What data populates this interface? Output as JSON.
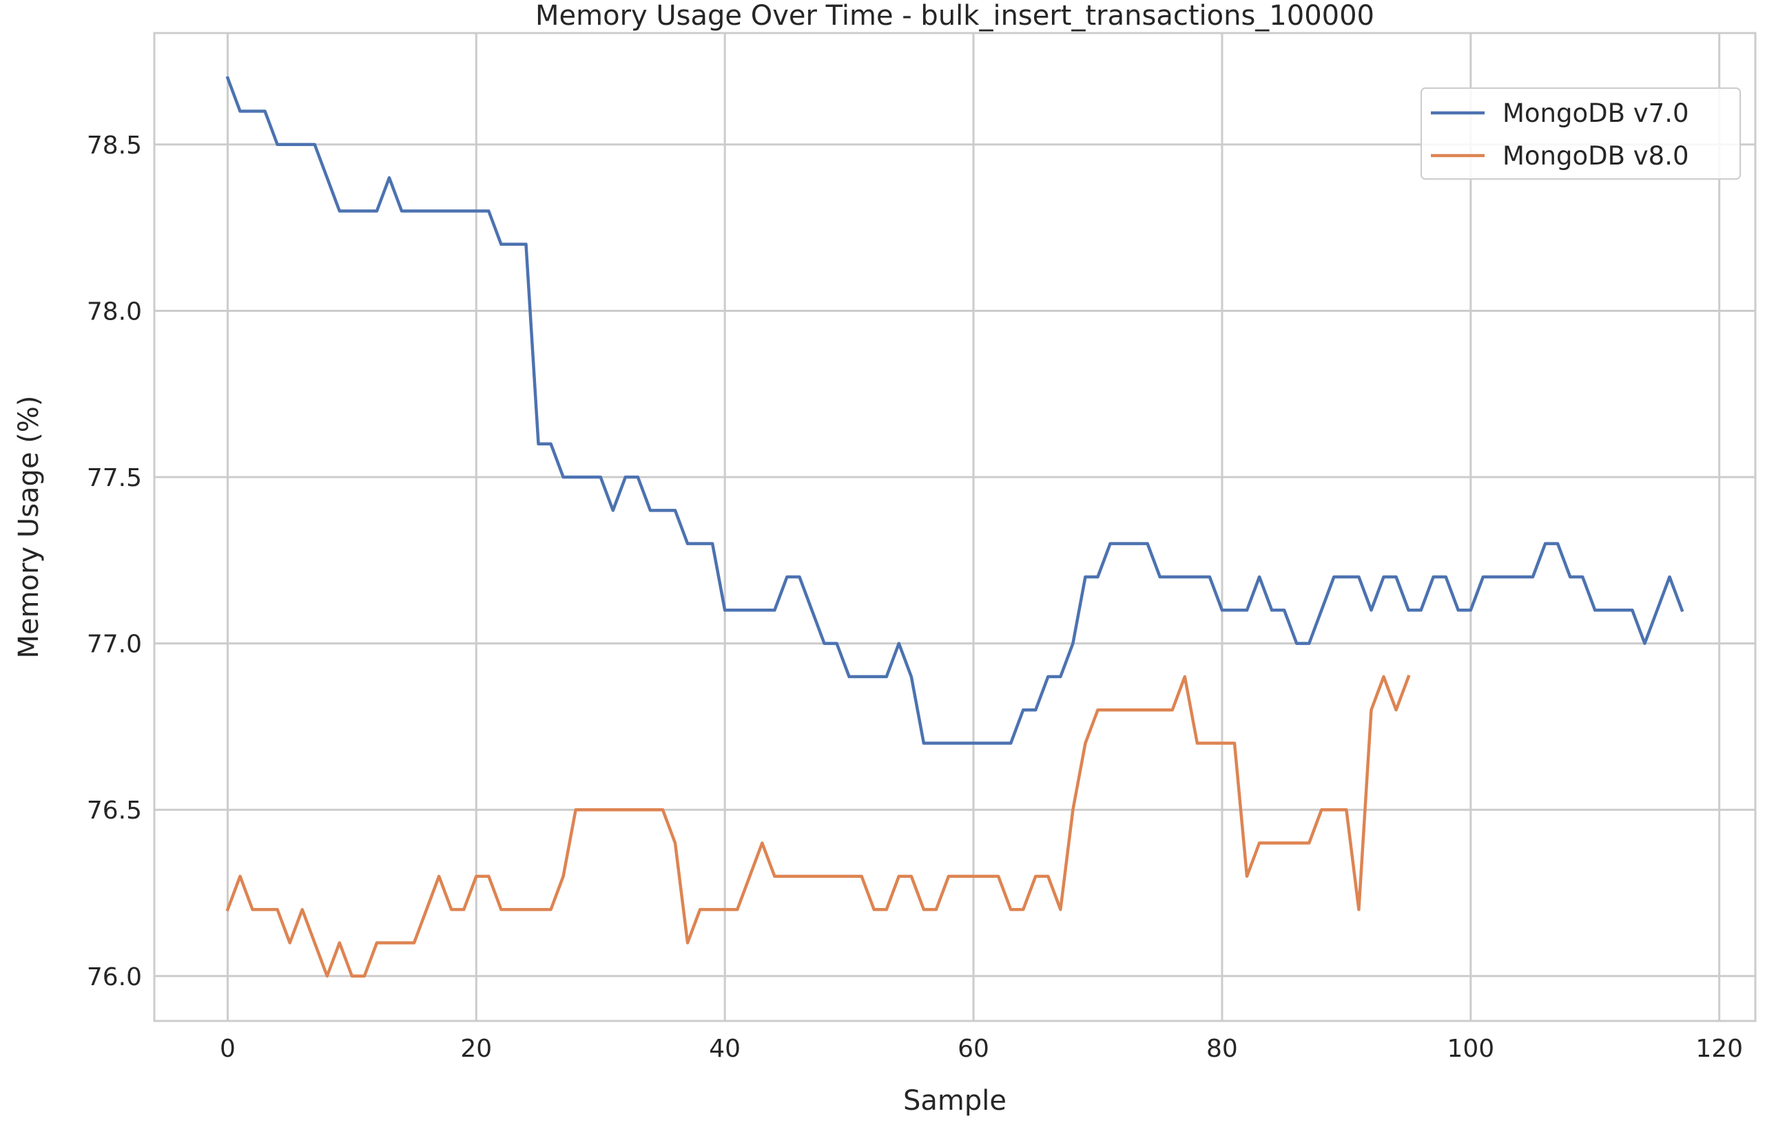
{
  "chart_data": {
    "type": "line",
    "title": "Memory Usage Over Time - bulk_insert_transactions_100000",
    "xlabel": "Sample",
    "ylabel": "Memory Usage (%)",
    "xlim": [
      -5.9,
      122.9
    ],
    "ylim": [
      75.865,
      78.835
    ],
    "x_ticks": [
      0,
      20,
      40,
      60,
      80,
      100,
      120
    ],
    "y_ticks": [
      76.0,
      76.5,
      77.0,
      77.5,
      78.0,
      78.5
    ],
    "y_tick_labels": [
      "76.0",
      "76.5",
      "77.0",
      "77.5",
      "78.0",
      "78.5"
    ],
    "grid": true,
    "legend_position": "top-right",
    "series": [
      {
        "name": "MongoDB v7.0",
        "color": "#4c72b0",
        "values": [
          78.7,
          78.6,
          78.6,
          78.6,
          78.5,
          78.5,
          78.5,
          78.5,
          78.4,
          78.3,
          78.3,
          78.3,
          78.3,
          78.4,
          78.3,
          78.3,
          78.3,
          78.3,
          78.3,
          78.3,
          78.3,
          78.3,
          78.2,
          78.2,
          78.2,
          77.6,
          77.6,
          77.5,
          77.5,
          77.5,
          77.5,
          77.4,
          77.5,
          77.5,
          77.4,
          77.4,
          77.4,
          77.3,
          77.3,
          77.3,
          77.1,
          77.1,
          77.1,
          77.1,
          77.1,
          77.2,
          77.2,
          77.1,
          77.0,
          77.0,
          76.9,
          76.9,
          76.9,
          76.9,
          77.0,
          76.9,
          76.7,
          76.7,
          76.7,
          76.7,
          76.7,
          76.7,
          76.7,
          76.7,
          76.8,
          76.8,
          76.9,
          76.9,
          77.0,
          77.2,
          77.2,
          77.3,
          77.3,
          77.3,
          77.3,
          77.2,
          77.2,
          77.2,
          77.2,
          77.2,
          77.1,
          77.1,
          77.1,
          77.2,
          77.1,
          77.1,
          77.0,
          77.0,
          77.1,
          77.2,
          77.2,
          77.2,
          77.1,
          77.2,
          77.2,
          77.1,
          77.1,
          77.2,
          77.2,
          77.1,
          77.1,
          77.2,
          77.2,
          77.2,
          77.2,
          77.2,
          77.3,
          77.3,
          77.2,
          77.2,
          77.1,
          77.1,
          77.1,
          77.1,
          77.0,
          77.1,
          77.2,
          77.1
        ]
      },
      {
        "name": "MongoDB v8.0",
        "color": "#dd8452",
        "values": [
          76.2,
          76.3,
          76.2,
          76.2,
          76.2,
          76.1,
          76.2,
          76.1,
          76.0,
          76.1,
          76.0,
          76.0,
          76.1,
          76.1,
          76.1,
          76.1,
          76.2,
          76.3,
          76.2,
          76.2,
          76.3,
          76.3,
          76.2,
          76.2,
          76.2,
          76.2,
          76.2,
          76.3,
          76.5,
          76.5,
          76.5,
          76.5,
          76.5,
          76.5,
          76.5,
          76.5,
          76.4,
          76.1,
          76.2,
          76.2,
          76.2,
          76.2,
          76.3,
          76.4,
          76.3,
          76.3,
          76.3,
          76.3,
          76.3,
          76.3,
          76.3,
          76.3,
          76.2,
          76.2,
          76.3,
          76.3,
          76.2,
          76.2,
          76.3,
          76.3,
          76.3,
          76.3,
          76.3,
          76.2,
          76.2,
          76.3,
          76.3,
          76.2,
          76.5,
          76.7,
          76.8,
          76.8,
          76.8,
          76.8,
          76.8,
          76.8,
          76.8,
          76.9,
          76.7,
          76.7,
          76.7,
          76.7,
          76.3,
          76.4,
          76.4,
          76.4,
          76.4,
          76.4,
          76.5,
          76.5,
          76.5,
          76.2,
          76.8,
          76.9,
          76.8,
          76.9
        ]
      }
    ]
  }
}
